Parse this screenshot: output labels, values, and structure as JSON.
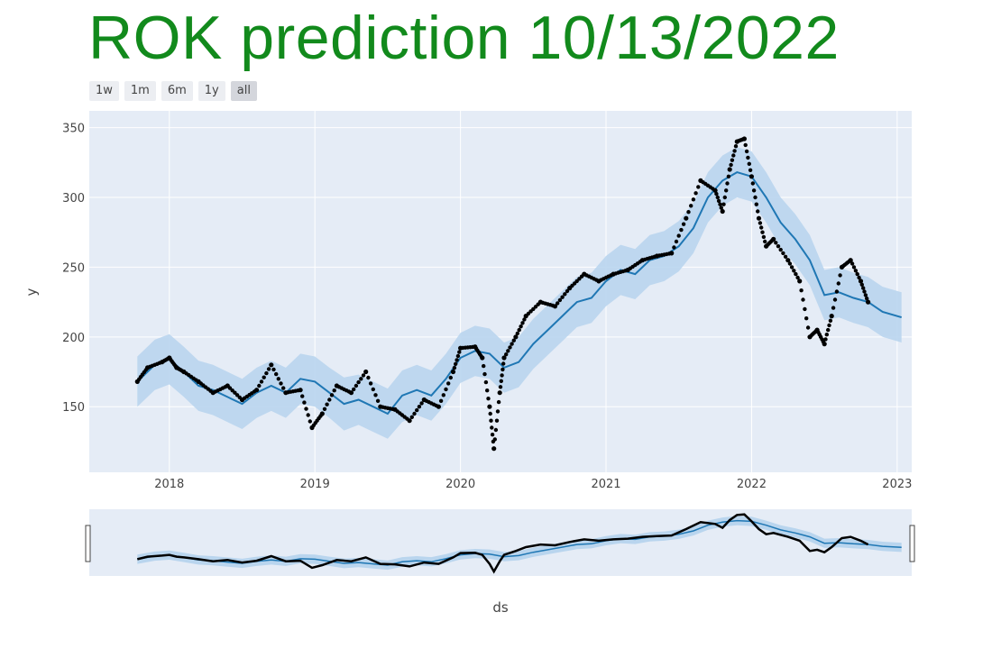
{
  "title": "ROK prediction 10/13/2022",
  "range_buttons": [
    "1w",
    "1m",
    "6m",
    "1y",
    "all"
  ],
  "colors": {
    "title": "#128a1c",
    "plot_bg": "#e5ecf6",
    "band": "#b9d5ee",
    "trend": "#1f77b4",
    "points": "#000000"
  },
  "chart_data": {
    "type": "line",
    "title": "ROK prediction 10/13/2022",
    "xlabel": "ds",
    "ylabel": "y",
    "xlim": [
      2017.45,
      2023.1
    ],
    "ylim": [
      103,
      362
    ],
    "x_ticks": [
      "2018",
      "2019",
      "2020",
      "2021",
      "2022",
      "2023"
    ],
    "y_ticks": [
      150,
      200,
      250,
      300,
      350
    ],
    "grid": true,
    "range_slider": true,
    "series": [
      {
        "kind": "forecast",
        "x": [
          2017.78,
          2017.9,
          2018.0,
          2018.1,
          2018.2,
          2018.3,
          2018.4,
          2018.5,
          2018.6,
          2018.7,
          2018.8,
          2018.9,
          2019.0,
          2019.1,
          2019.2,
          2019.3,
          2019.4,
          2019.5,
          2019.6,
          2019.7,
          2019.8,
          2019.9,
          2020.0,
          2020.1,
          2020.2,
          2020.3,
          2020.4,
          2020.5,
          2020.6,
          2020.7,
          2020.8,
          2020.9,
          2021.0,
          2021.1,
          2021.2,
          2021.3,
          2021.4,
          2021.5,
          2021.6,
          2021.7,
          2021.8,
          2021.9,
          2022.0,
          2022.1,
          2022.2,
          2022.3,
          2022.4,
          2022.5,
          2022.6,
          2022.7,
          2022.8,
          2022.9,
          2023.03
        ],
        "yhat": [
          168,
          180,
          184,
          175,
          165,
          162,
          157,
          152,
          160,
          165,
          160,
          170,
          168,
          160,
          152,
          155,
          150,
          145,
          158,
          162,
          158,
          170,
          185,
          190,
          188,
          178,
          182,
          195,
          205,
          215,
          225,
          228,
          240,
          248,
          245,
          255,
          258,
          265,
          278,
          300,
          312,
          318,
          315,
          300,
          282,
          270,
          255,
          230,
          232,
          228,
          225,
          218,
          214
        ],
        "lower": [
          150,
          162,
          166,
          157,
          147,
          144,
          139,
          134,
          142,
          147,
          142,
          152,
          150,
          142,
          133,
          137,
          132,
          127,
          139,
          144,
          140,
          152,
          167,
          172,
          170,
          160,
          164,
          177,
          187,
          197,
          207,
          210,
          222,
          230,
          227,
          237,
          240,
          247,
          260,
          282,
          294,
          300,
          297,
          282,
          264,
          252,
          237,
          212,
          214,
          210,
          207,
          200,
          196
        ],
        "upper": [
          186,
          198,
          202,
          193,
          183,
          180,
          175,
          170,
          178,
          183,
          178,
          188,
          186,
          178,
          171,
          173,
          168,
          163,
          176,
          180,
          176,
          188,
          203,
          208,
          206,
          196,
          200,
          213,
          223,
          233,
          243,
          246,
          258,
          266,
          263,
          273,
          276,
          283,
          296,
          318,
          330,
          336,
          333,
          318,
          300,
          288,
          273,
          248,
          250,
          246,
          243,
          236,
          232
        ]
      },
      {
        "kind": "actual",
        "x": [
          2017.78,
          2017.85,
          2017.95,
          2018.0,
          2018.05,
          2018.1,
          2018.2,
          2018.3,
          2018.4,
          2018.5,
          2018.6,
          2018.7,
          2018.8,
          2018.9,
          2018.98,
          2019.05,
          2019.15,
          2019.25,
          2019.35,
          2019.45,
          2019.55,
          2019.65,
          2019.75,
          2019.85,
          2019.95,
          2020.0,
          2020.1,
          2020.15,
          2020.2,
          2020.23,
          2020.27,
          2020.3,
          2020.38,
          2020.45,
          2020.55,
          2020.65,
          2020.75,
          2020.85,
          2020.95,
          2021.05,
          2021.15,
          2021.25,
          2021.35,
          2021.45,
          2021.55,
          2021.65,
          2021.75,
          2021.8,
          2021.85,
          2021.9,
          2021.95,
          2022.0,
          2022.05,
          2022.1,
          2022.15,
          2022.25,
          2022.33,
          2022.4,
          2022.45,
          2022.5,
          2022.55,
          2022.62,
          2022.68,
          2022.75,
          2022.8
        ],
        "y": [
          168,
          178,
          182,
          185,
          178,
          175,
          168,
          160,
          165,
          155,
          162,
          180,
          160,
          162,
          135,
          145,
          165,
          160,
          175,
          150,
          148,
          140,
          155,
          150,
          175,
          192,
          193,
          185,
          150,
          120,
          160,
          185,
          200,
          215,
          225,
          222,
          235,
          245,
          240,
          245,
          248,
          255,
          258,
          260,
          285,
          312,
          305,
          290,
          320,
          340,
          342,
          315,
          285,
          265,
          270,
          255,
          240,
          200,
          205,
          195,
          215,
          250,
          255,
          240,
          225
        ]
      }
    ]
  }
}
